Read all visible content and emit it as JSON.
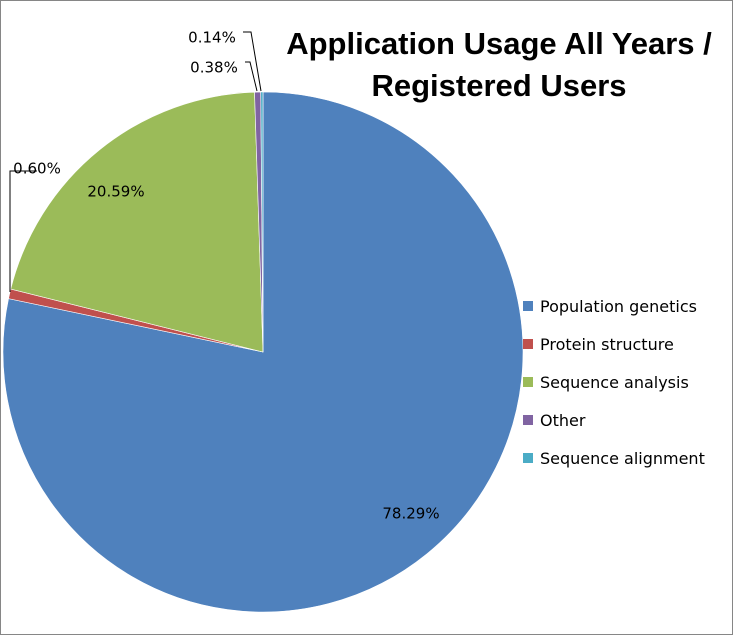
{
  "chart_data": {
    "type": "pie",
    "title_lines": [
      "Application Usage All Years /",
      "Registered Users"
    ],
    "slices": [
      {
        "name": "Population genetics",
        "value": 78.29,
        "label": "78.29%",
        "color": "#4F81BD"
      },
      {
        "name": "Protein structure",
        "value": 0.6,
        "label": "0.60%",
        "color": "#C0504D"
      },
      {
        "name": "Sequence analysis",
        "value": 20.59,
        "label": "20.59%",
        "color": "#9BBB59"
      },
      {
        "name": "Other",
        "value": 0.38,
        "label": "0.38%",
        "color": "#8064A2"
      },
      {
        "name": "Sequence alignment",
        "value": 0.14,
        "label": "0.14%",
        "color": "#4BACC6"
      }
    ],
    "legend_position": "right"
  }
}
